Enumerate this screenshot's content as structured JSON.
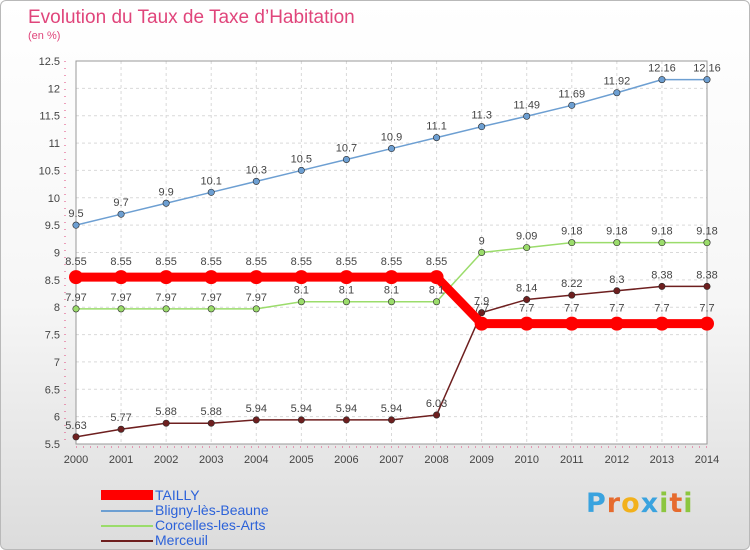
{
  "chart_data": {
    "type": "line",
    "title": "Evolution du Taux de Taxe d’Habitation",
    "subtitle": "(en %)",
    "x": [
      "2000",
      "2001",
      "2002",
      "2003",
      "2004",
      "2005",
      "2006",
      "2007",
      "2008",
      "2009",
      "2010",
      "2011",
      "2012",
      "2013",
      "2014"
    ],
    "ylim": [
      5.5,
      12.5
    ],
    "yticks": [
      "5.5",
      "6",
      "6.5",
      "7",
      "7.5",
      "8",
      "8.5",
      "9",
      "9.5",
      "10",
      "10.5",
      "11",
      "11.5",
      "12",
      "12.5"
    ],
    "legend_position": "bottom-left",
    "series": [
      {
        "name": "TAILLY",
        "color": "#ff0000",
        "values": [
          8.55,
          8.55,
          8.55,
          8.55,
          8.55,
          8.55,
          8.55,
          8.55,
          8.55,
          7.7,
          7.7,
          7.7,
          7.7,
          7.7,
          7.7
        ],
        "labels": [
          "8.55",
          "8.55",
          "8.55",
          "8.55",
          "8.55",
          "8.55",
          "8.55",
          "8.55",
          "8.55",
          "7.7",
          "7.7",
          "7.7",
          "7.7",
          "7.7",
          "7.7"
        ]
      },
      {
        "name": "Bligny-lès-Beaune",
        "color": "#6d9fd2",
        "values": [
          9.5,
          9.7,
          9.9,
          10.1,
          10.3,
          10.5,
          10.7,
          10.9,
          11.1,
          11.3,
          11.49,
          11.69,
          11.92,
          12.16,
          12.16
        ],
        "labels": [
          "9.5",
          "9.7",
          "9.9",
          "10.1",
          "10.3",
          "10.5",
          "10.7",
          "10.9",
          "11.1",
          "11.3",
          "11.49",
          "11.69",
          "11.92",
          "12.16",
          "12.16"
        ]
      },
      {
        "name": "Corcelles-les-Arts",
        "color": "#9bdc6b",
        "values": [
          7.97,
          7.97,
          7.97,
          7.97,
          7.97,
          8.1,
          8.1,
          8.1,
          8.1,
          9,
          9.09,
          9.18,
          9.18,
          9.18,
          9.18
        ],
        "labels": [
          "7.97",
          "7.97",
          "7.97",
          "7.97",
          "7.97",
          "8.1",
          "8.1",
          "8.1",
          "8.1",
          "9",
          "9.09",
          "9.18",
          "9.18",
          "9.18",
          "9.18"
        ]
      },
      {
        "name": "Merceuil",
        "color": "#6e1f1f",
        "values": [
          5.63,
          5.77,
          5.88,
          5.88,
          5.94,
          5.94,
          5.94,
          5.94,
          6.03,
          7.9,
          8.14,
          8.22,
          8.3,
          8.38,
          8.38
        ],
        "labels": [
          "5.63",
          "5.77",
          "5.88",
          "5.88",
          "5.94",
          "5.94",
          "5.94",
          "5.94",
          "6.03",
          "7.9",
          "8.14",
          "8.22",
          "8.3",
          "8.38",
          "8.38"
        ]
      }
    ]
  },
  "logo": {
    "letters": [
      {
        "ch": "P",
        "color": "#3aa3df"
      },
      {
        "ch": "r",
        "color": "#e66b2e"
      },
      {
        "ch": "o",
        "color": "#f2b11c"
      },
      {
        "ch": "x",
        "color": "#3aa3df"
      },
      {
        "ch": "i",
        "color": "#8cc63f"
      },
      {
        "ch": "t",
        "color": "#e66b2e"
      },
      {
        "ch": "i",
        "color": "#8cc63f"
      }
    ]
  }
}
